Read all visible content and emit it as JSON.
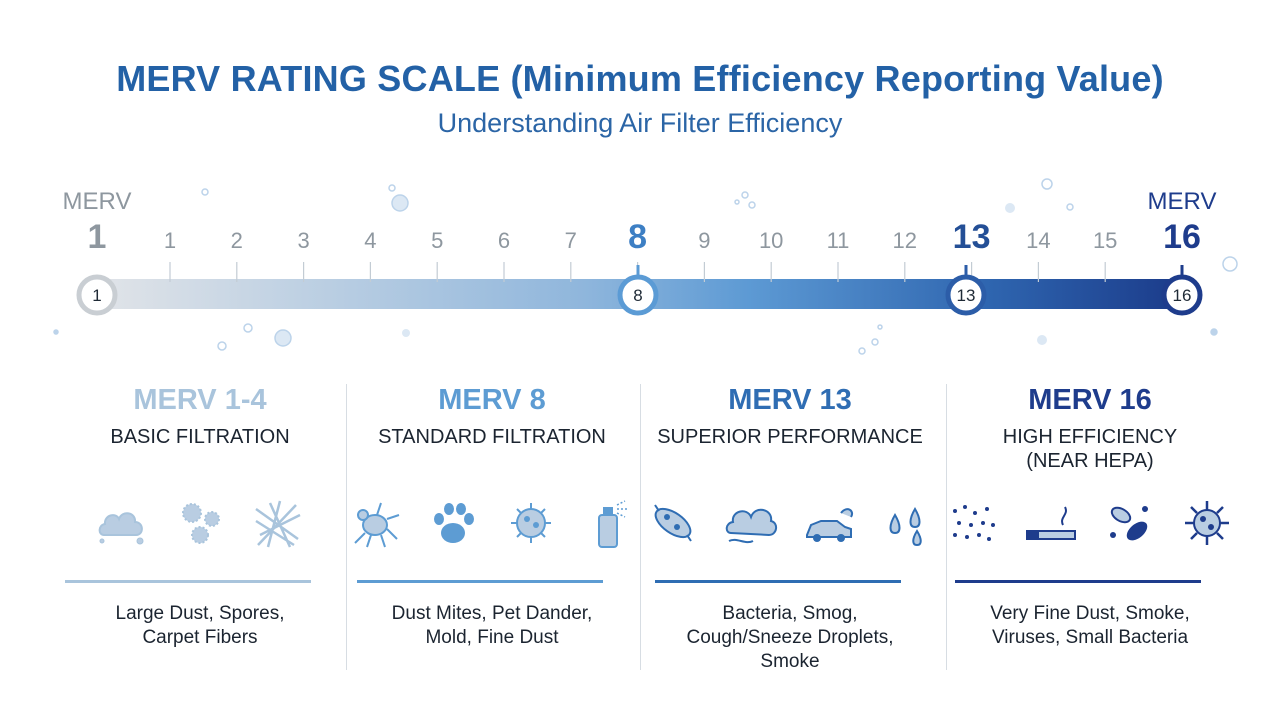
{
  "header": {
    "title": "MERV RATING SCALE (Minimum Efficiency Reporting Value)",
    "subtitle": "Understanding Air Filter Efficiency"
  },
  "scale": {
    "start_caption": "MERV",
    "start_value": "1",
    "end_caption": "MERV",
    "end_value": "16",
    "ticks": [
      "1",
      "2",
      "3",
      "4",
      "5",
      "6",
      "7",
      "8",
      "9",
      "10",
      "11",
      "12",
      "13",
      "14",
      "15",
      "16"
    ],
    "major_ticks": [
      "8",
      "13"
    ],
    "nodes": [
      "1",
      "8",
      "13",
      "16"
    ],
    "colors": {
      "light": "#d9dee3",
      "mid": "#5b9bd5",
      "dark": "#1e3c8c"
    }
  },
  "categories": [
    {
      "range": "MERV 1-4",
      "level": "BASIC FILTRATION",
      "level2": "",
      "description_line1": "Large Dust, Spores,",
      "description_line2": "Carpet Fibers",
      "description_line3": "",
      "color": "#a9c4dc",
      "icons": [
        "dust-cloud-icon",
        "spores-icon",
        "carpet-fibers-icon"
      ]
    },
    {
      "range": "MERV 8",
      "level": "STANDARD FILTRATION",
      "level2": "",
      "description_line1": "Dust Mites, Pet Dander,",
      "description_line2": "Mold, Fine Dust",
      "description_line3": "",
      "color": "#5d9cd3",
      "icons": [
        "dust-mite-icon",
        "paw-print-icon",
        "mold-spore-icon",
        "spray-can-icon"
      ]
    },
    {
      "range": "MERV 13",
      "level": "SUPERIOR PERFORMANCE",
      "level2": "",
      "description_line1": "Bacteria, Smog,",
      "description_line2": "Cough/Sneeze Droplets,",
      "description_line3": "Smoke",
      "color": "#2f6db3",
      "icons": [
        "bacteria-icon",
        "smog-cloud-icon",
        "car-exhaust-icon",
        "droplets-icon"
      ]
    },
    {
      "range": "MERV 16",
      "level": "HIGH EFFICIENCY",
      "level2": "(NEAR HEPA)",
      "description_line1": "Very Fine Dust, Smoke,",
      "description_line2": "Viruses, Small Bacteria",
      "description_line3": "",
      "color": "#1e3c8c",
      "icons": [
        "fine-dust-icon",
        "cigarette-icon",
        "small-bacteria-icon",
        "virus-icon"
      ]
    }
  ]
}
